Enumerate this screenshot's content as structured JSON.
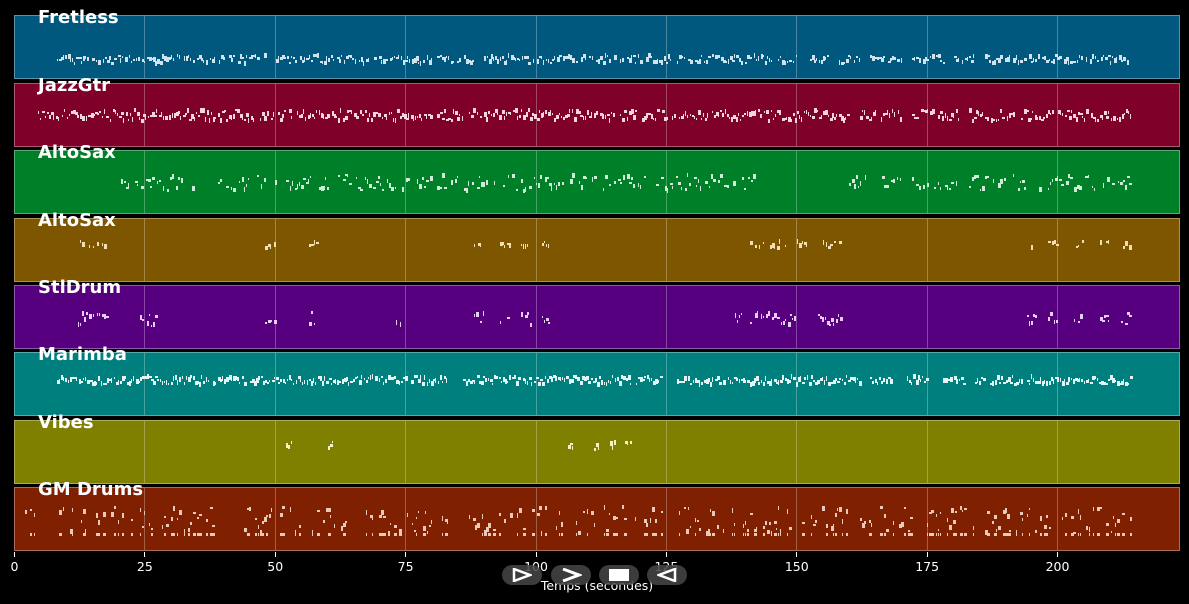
{
  "chart_data": {
    "type": "scatter",
    "subtype": "piano-roll",
    "title": "",
    "xlabel": "Temps (secondes)",
    "ylabel": "",
    "xlim": [
      0,
      223.6
    ],
    "x_ticks": [
      0,
      25,
      50,
      75,
      100,
      125,
      150,
      175,
      200
    ],
    "grid": true,
    "tracks": [
      {
        "name": "Fretless",
        "color": "#00587f",
        "note_color": "#cfe3ee",
        "segments": [
          [
            8,
            40
          ],
          [
            41,
            48
          ],
          [
            50,
            80
          ],
          [
            81,
            88
          ],
          [
            90,
            120
          ],
          [
            121,
            126
          ],
          [
            127,
            150
          ],
          [
            152,
            156
          ],
          [
            158,
            162
          ],
          [
            164,
            170
          ],
          [
            172,
            178
          ],
          [
            180,
            184
          ],
          [
            186,
            214
          ]
        ],
        "lane": 0.68,
        "spread": 0.06,
        "density": 0.85
      },
      {
        "name": "JazzGtr",
        "color": "#7f0029",
        "note_color": "#f2d6de",
        "segments": [
          [
            4,
            46
          ],
          [
            47,
            53
          ],
          [
            54,
            80
          ],
          [
            81,
            86
          ],
          [
            87,
            115
          ],
          [
            116,
            125
          ],
          [
            126,
            160
          ],
          [
            162,
            165
          ],
          [
            166,
            170
          ],
          [
            172,
            176
          ],
          [
            177,
            181
          ],
          [
            183,
            192
          ],
          [
            193,
            199
          ],
          [
            200,
            214
          ]
        ],
        "lane": 0.5,
        "spread": 0.08,
        "density": 0.95
      },
      {
        "name": "AltoSax",
        "color": "#007f29",
        "note_color": "#cfead6",
        "segments": [
          [
            20,
            35
          ],
          [
            38,
            48
          ],
          [
            49,
            60
          ],
          [
            62,
            80
          ],
          [
            81,
            105
          ],
          [
            106,
            122
          ],
          [
            123,
            142
          ],
          [
            160,
            163
          ],
          [
            165,
            170
          ],
          [
            172,
            182
          ],
          [
            183,
            195
          ],
          [
            196,
            214
          ]
        ],
        "lane": 0.5,
        "spread": 0.12,
        "density": 0.6
      },
      {
        "name": "AltoSax",
        "color": "#7f5600",
        "note_color": "#f1dfb6",
        "segments": [
          [
            12,
            18
          ],
          [
            48,
            50
          ],
          [
            56,
            58
          ],
          [
            88,
            90
          ],
          [
            93,
            95
          ],
          [
            97,
            99
          ],
          [
            101,
            103
          ],
          [
            141,
            148
          ],
          [
            150,
            152
          ],
          [
            155,
            158
          ],
          [
            194,
            196
          ],
          [
            198,
            200
          ],
          [
            203,
            205
          ],
          [
            208,
            210
          ],
          [
            212,
            214
          ]
        ],
        "lane": 0.41,
        "spread": 0.05,
        "density": 0.7
      },
      {
        "name": "StlDrum",
        "color": "#56007f",
        "note_color": "#e4cff0",
        "segments": [
          [
            12,
            19
          ],
          [
            24,
            27
          ],
          [
            48,
            50
          ],
          [
            56,
            58
          ],
          [
            73,
            74
          ],
          [
            88,
            90
          ],
          [
            93,
            95
          ],
          [
            97,
            99
          ],
          [
            101,
            103
          ],
          [
            138,
            140
          ],
          [
            141,
            150
          ],
          [
            154,
            159
          ],
          [
            194,
            196
          ],
          [
            198,
            200
          ],
          [
            203,
            205
          ],
          [
            208,
            210
          ],
          [
            212,
            214
          ]
        ],
        "lane": 0.52,
        "spread": 0.1,
        "density": 0.8
      },
      {
        "name": "Marimba",
        "color": "#007f7f",
        "note_color": "#e3f4f4",
        "segments": [
          [
            8,
            37
          ],
          [
            38,
            44
          ],
          [
            45,
            75
          ],
          [
            76,
            83
          ],
          [
            86,
            118
          ],
          [
            119,
            124
          ],
          [
            127,
            162
          ],
          [
            164,
            168
          ],
          [
            171,
            175
          ],
          [
            178,
            182
          ],
          [
            184,
            186
          ],
          [
            187,
            193
          ],
          [
            194,
            214
          ]
        ],
        "lane": 0.43,
        "spread": 0.06,
        "density": 1.0
      },
      {
        "name": "Vibes",
        "color": "#7f7f00",
        "note_color": "#f3f3c6",
        "segments": [
          [
            52,
            53
          ],
          [
            60,
            61
          ],
          [
            106,
            107
          ],
          [
            111,
            112
          ],
          [
            114,
            115
          ],
          [
            117,
            118
          ]
        ],
        "lane": 0.4,
        "spread": 0.06,
        "density": 1.0
      },
      {
        "name": "GM Drums",
        "color": "#7f2000",
        "note_color": "#e9c9bc",
        "segments": [
          [
            2,
            4
          ],
          [
            8,
            38
          ],
          [
            44,
            64
          ],
          [
            66,
            83
          ],
          [
            87,
            112
          ],
          [
            113,
            124
          ],
          [
            127,
            160
          ],
          [
            162,
            172
          ],
          [
            174,
            184
          ],
          [
            186,
            199
          ],
          [
            200,
            214
          ]
        ],
        "lane": 0.5,
        "spread": 0.2,
        "density": 0.55
      }
    ]
  },
  "controls": {
    "buttons": [
      {
        "name": "play-button",
        "glyph": "play"
      },
      {
        "name": "forward-button",
        "glyph": "forward"
      },
      {
        "name": "stop-button",
        "glyph": "stop"
      },
      {
        "name": "rewind-button",
        "glyph": "rewind"
      }
    ]
  }
}
